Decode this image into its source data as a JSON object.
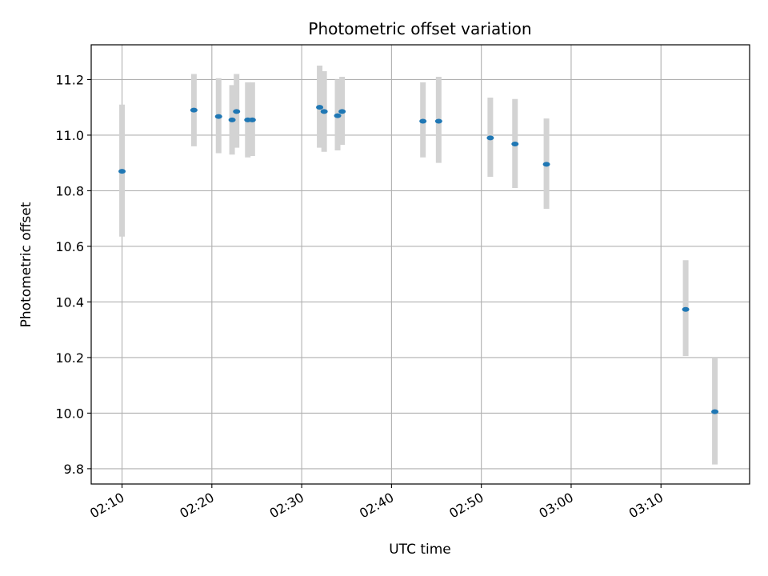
{
  "chart_data": {
    "type": "scatter",
    "title": "Photometric offset variation",
    "xlabel": "UTC time",
    "ylabel": "Photometric offset",
    "xlim": [
      "02:06:34",
      "03:19:52"
    ],
    "ylim": [
      9.745,
      11.325
    ],
    "xticks": [
      "02:10",
      "02:20",
      "02:30",
      "02:40",
      "02:50",
      "03:00",
      "03:10"
    ],
    "yticks": [
      "9.8",
      "10.0",
      "10.2",
      "10.4",
      "10.6",
      "10.8",
      "11.0",
      "11.2"
    ],
    "grid": true,
    "colors": {
      "marker": "#1f77b4",
      "errorbar": "#d3d3d3",
      "grid": "#b0b0b0"
    },
    "series": [
      {
        "points": [
          {
            "x": "02:10:00",
            "y": 10.87,
            "ylow": 10.635,
            "yhigh": 11.11
          },
          {
            "x": "02:18:00",
            "y": 11.09,
            "ylow": 10.96,
            "yhigh": 11.22
          },
          {
            "x": "02:20:45",
            "y": 11.067,
            "ylow": 10.935,
            "yhigh": 11.205
          },
          {
            "x": "02:22:15",
            "y": 11.055,
            "ylow": 10.93,
            "yhigh": 11.18
          },
          {
            "x": "02:22:45",
            "y": 11.085,
            "ylow": 10.955,
            "yhigh": 11.22
          },
          {
            "x": "02:24:00",
            "y": 11.055,
            "ylow": 10.92,
            "yhigh": 11.19
          },
          {
            "x": "02:24:30",
            "y": 11.055,
            "ylow": 10.925,
            "yhigh": 11.19
          },
          {
            "x": "02:32:00",
            "y": 11.1,
            "ylow": 10.955,
            "yhigh": 11.25
          },
          {
            "x": "02:32:30",
            "y": 11.085,
            "ylow": 10.94,
            "yhigh": 11.23
          },
          {
            "x": "02:34:00",
            "y": 11.07,
            "ylow": 10.945,
            "yhigh": 11.2
          },
          {
            "x": "02:34:30",
            "y": 11.085,
            "ylow": 10.965,
            "yhigh": 11.21
          },
          {
            "x": "02:43:30",
            "y": 11.05,
            "ylow": 10.92,
            "yhigh": 11.19
          },
          {
            "x": "02:45:15",
            "y": 11.05,
            "ylow": 10.9,
            "yhigh": 11.21
          },
          {
            "x": "02:51:00",
            "y": 10.99,
            "ylow": 10.85,
            "yhigh": 11.135
          },
          {
            "x": "02:53:45",
            "y": 10.968,
            "ylow": 10.81,
            "yhigh": 11.13
          },
          {
            "x": "02:57:15",
            "y": 10.895,
            "ylow": 10.735,
            "yhigh": 11.06
          },
          {
            "x": "03:12:45",
            "y": 10.373,
            "ylow": 10.205,
            "yhigh": 10.55
          },
          {
            "x": "03:16:00",
            "y": 10.005,
            "ylow": 9.815,
            "yhigh": 10.2
          }
        ]
      }
    ]
  }
}
